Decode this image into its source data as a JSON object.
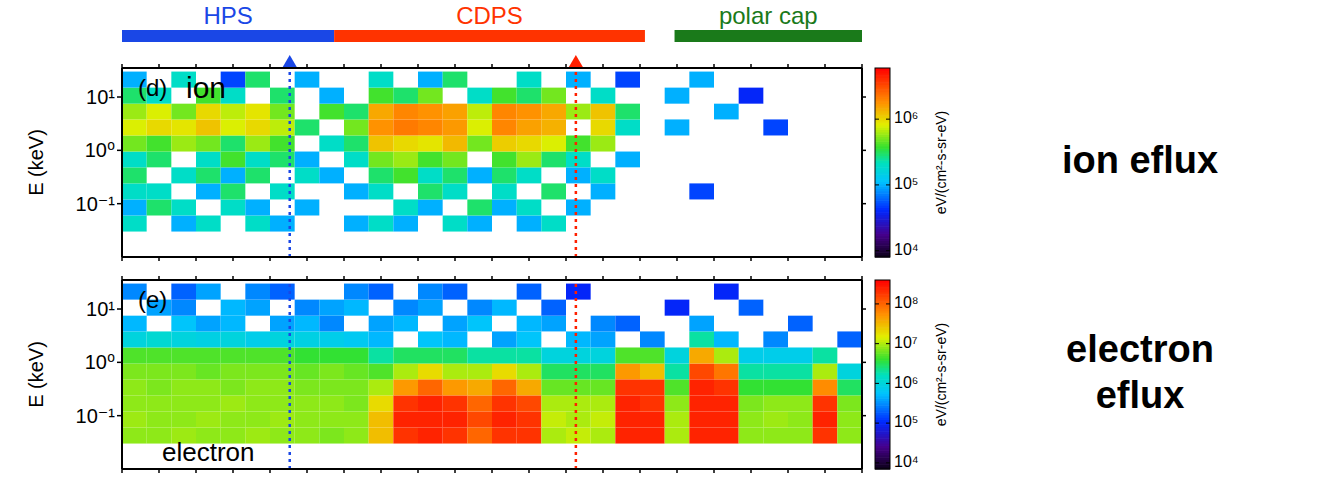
{
  "regions": [
    {
      "name": "HPS",
      "color": "#1a47e6",
      "start": 0,
      "end": 8.6
    },
    {
      "name": "CDPS",
      "color": "#ff3300",
      "start": 8.6,
      "end": 21.2
    },
    {
      "name": "polar cap",
      "color": "#1a7a1a",
      "start": 22.4,
      "end": 30
    }
  ],
  "markers": [
    {
      "x": 6.8,
      "color": "#1a47e6"
    },
    {
      "x": 18.4,
      "color": "#ff2000"
    }
  ],
  "chart_data": [
    {
      "type": "heatmap",
      "title": "ion eflux",
      "panel_label": "(d)",
      "species_label": "ion",
      "ylabel": "E (keV)",
      "log": "y",
      "tick_labels": "y",
      "xlim": [
        0,
        30
      ],
      "xticks": [
        0,
        1.5,
        3,
        4.5,
        6,
        7.5,
        9,
        10.5,
        12,
        13.5,
        15,
        16.5,
        18,
        19.5,
        21,
        22.5,
        24,
        25.5,
        27,
        28.5,
        30
      ],
      "ylim": [
        0.01,
        35
      ],
      "yticks": [
        {
          "value": 0.1,
          "label": "10⁻¹"
        },
        {
          "value": 1,
          "label": "10⁰"
        },
        {
          "value": 10,
          "label": "10¹"
        }
      ],
      "x_bins": [
        0,
        1,
        2,
        3,
        4,
        5,
        6,
        7,
        8,
        9,
        10,
        11,
        12,
        13,
        14,
        15,
        16,
        17,
        18,
        19,
        20,
        21,
        22,
        23,
        24,
        25,
        26,
        27,
        28,
        29,
        30
      ],
      "y_bins": [
        0.03,
        0.06,
        0.12,
        0.24,
        0.48,
        0.95,
        1.9,
        3.8,
        7.5,
        15,
        30
      ],
      "z": [
        [
          200000.0,
          null,
          100000.0,
          200000.0,
          null,
          200000.0,
          100000.0,
          null,
          null,
          100000.0,
          200000.0,
          100000.0,
          null,
          200000.0,
          100000.0,
          null,
          100000.0,
          200000.0,
          null,
          null,
          null,
          null,
          null,
          null,
          null,
          null,
          null,
          null,
          null,
          null
        ],
        [
          100000.0,
          300000.0,
          200000.0,
          null,
          200000.0,
          100000.0,
          null,
          100000.0,
          null,
          null,
          null,
          200000.0,
          100000.0,
          null,
          300000.0,
          100000.0,
          200000.0,
          null,
          100000.0,
          null,
          null,
          null,
          null,
          null,
          null,
          null,
          null,
          null,
          null,
          null
        ],
        [
          200000.0,
          200000.0,
          null,
          100000.0,
          300000.0,
          null,
          200000.0,
          null,
          null,
          100000.0,
          200000.0,
          null,
          300000.0,
          200000.0,
          null,
          200000.0,
          null,
          300000.0,
          null,
          100000.0,
          null,
          null,
          null,
          50000.0,
          null,
          null,
          null,
          null,
          null,
          null
        ],
        [
          300000.0,
          null,
          200000.0,
          300000.0,
          100000.0,
          300000.0,
          null,
          200000.0,
          100000.0,
          null,
          300000.0,
          400000.0,
          200000.0,
          300000.0,
          100000.0,
          300000.0,
          200000.0,
          null,
          100000.0,
          200000.0,
          null,
          null,
          null,
          null,
          null,
          null,
          null,
          null,
          null,
          null
        ],
        [
          200000.0,
          300000.0,
          null,
          200000.0,
          400000.0,
          200000.0,
          300000.0,
          100000.0,
          null,
          200000.0,
          500000.0,
          600000.0,
          400000.0,
          500000.0,
          null,
          400000.0,
          600000.0,
          300000.0,
          200000.0,
          null,
          100000.0,
          null,
          null,
          null,
          null,
          null,
          null,
          null,
          null,
          null
        ],
        [
          500000.0,
          400000.0,
          600000.0,
          500000.0,
          300000.0,
          600000.0,
          400000.0,
          null,
          200000.0,
          300000.0,
          1200000.0,
          1000000.0,
          900000.0,
          1300000.0,
          500000.0,
          1100000.0,
          1000000.0,
          800000.0,
          400000.0,
          600000.0,
          null,
          null,
          null,
          null,
          null,
          null,
          null,
          null,
          null,
          null
        ],
        [
          800000.0,
          1000000.0,
          900000.0,
          1200000.0,
          800000.0,
          1000000.0,
          700000.0,
          300000.0,
          null,
          500000.0,
          1800000.0,
          2200000.0,
          2000000.0,
          1700000.0,
          800000.0,
          2000000.0,
          1600000.0,
          1400000.0,
          null,
          1000000.0,
          200000.0,
          null,
          100000.0,
          null,
          null,
          null,
          50000.0,
          null,
          null,
          null
        ],
        [
          600000.0,
          800000.0,
          500000.0,
          1000000.0,
          700000.0,
          900000.0,
          500000.0,
          null,
          400000.0,
          300000.0,
          1500000.0,
          2000000.0,
          1800000.0,
          1600000.0,
          700000.0,
          2000000.0,
          1800000.0,
          1500000.0,
          600000.0,
          1200000.0,
          300000.0,
          null,
          null,
          null,
          100000.0,
          null,
          null,
          null,
          null,
          null
        ],
        [
          300000.0,
          200000.0,
          null,
          400000.0,
          200000.0,
          null,
          300000.0,
          null,
          100000.0,
          null,
          400000.0,
          300000.0,
          500000.0,
          null,
          200000.0,
          400000.0,
          300000.0,
          500000.0,
          null,
          200000.0,
          null,
          null,
          100000.0,
          null,
          null,
          40000.0,
          null,
          null,
          null,
          null
        ],
        [
          100000.0,
          null,
          200000.0,
          null,
          50000.0,
          300000.0,
          null,
          100000.0,
          null,
          null,
          200000.0,
          null,
          100000.0,
          300000.0,
          null,
          null,
          200000.0,
          null,
          100000.0,
          null,
          50000.0,
          null,
          null,
          100000.0,
          null,
          null,
          null,
          null,
          null,
          null
        ]
      ],
      "colorbar": {
        "label": "eV/(cm²-s-sr-eV)",
        "range": [
          8000,
          6000000
        ],
        "ticks": [
          {
            "value": 10000,
            "label": "10⁴"
          },
          {
            "value": 100000,
            "label": "10⁵"
          },
          {
            "value": 1000000,
            "label": "10⁶"
          }
        ]
      }
    },
    {
      "type": "heatmap",
      "title": "electron eflux",
      "panel_label": "(e)",
      "species_label": "electron",
      "ylabel": "E (keV)",
      "log": "y",
      "tick_labels": "y",
      "xlim": [
        0,
        30
      ],
      "xticks": [
        0,
        1.5,
        3,
        4.5,
        6,
        7.5,
        9,
        10.5,
        12,
        13.5,
        15,
        16.5,
        18,
        19.5,
        21,
        22.5,
        24,
        25.5,
        27,
        28.5,
        30
      ],
      "ylim": [
        0.01,
        35
      ],
      "yticks": [
        {
          "value": 0.1,
          "label": "10⁻¹"
        },
        {
          "value": 1,
          "label": "10⁰"
        },
        {
          "value": 10,
          "label": "10¹"
        }
      ],
      "x_bins": [
        0,
        1,
        2,
        3,
        4,
        5,
        6,
        7,
        8,
        9,
        10,
        11,
        12,
        13,
        14,
        15,
        16,
        17,
        18,
        19,
        20,
        21,
        22,
        23,
        24,
        25,
        26,
        27,
        28,
        29,
        30
      ],
      "y_bins": [
        0.03,
        0.06,
        0.12,
        0.24,
        0.48,
        0.95,
        1.9,
        3.8,
        7.5,
        15,
        30
      ],
      "z": [
        [
          8000000.0,
          8000000.0,
          9000000.0,
          8000000.0,
          8000000.0,
          9000000.0,
          8000000.0,
          8000000.0,
          7000000.0,
          8000000.0,
          30000000.0,
          200000000.0,
          250000000.0,
          200000000.0,
          100000000.0,
          200000000.0,
          200000000.0,
          10000000.0,
          12000000.0,
          10000000.0,
          250000000.0,
          250000000.0,
          10000000.0,
          250000000.0,
          250000000.0,
          8000000.0,
          8000000.0,
          8000000.0,
          200000000.0,
          8000000.0
        ],
        [
          9000000.0,
          8000000.0,
          8000000.0,
          9000000.0,
          8000000.0,
          8000000.0,
          9000000.0,
          8000000.0,
          8000000.0,
          8000000.0,
          30000000.0,
          250000000.0,
          250000000.0,
          250000000.0,
          150000000.0,
          250000000.0,
          200000000.0,
          12000000.0,
          10000000.0,
          12000000.0,
          250000000.0,
          250000000.0,
          10000000.0,
          250000000.0,
          250000000.0,
          8000000.0,
          9000000.0,
          8000000.0,
          250000000.0,
          8000000.0
        ],
        [
          8000000.0,
          8000000.0,
          8000000.0,
          8000000.0,
          9000000.0,
          8000000.0,
          8000000.0,
          8000000.0,
          8000000.0,
          7000000.0,
          20000000.0,
          200000000.0,
          250000000.0,
          200000000.0,
          100000000.0,
          200000000.0,
          150000000.0,
          10000000.0,
          10000000.0,
          10000000.0,
          250000000.0,
          200000000.0,
          8000000.0,
          250000000.0,
          250000000.0,
          7000000.0,
          8000000.0,
          8000000.0,
          200000000.0,
          7000000.0
        ],
        [
          8000000.0,
          7000000.0,
          8000000.0,
          8000000.0,
          7000000.0,
          8000000.0,
          8000000.0,
          7000000.0,
          7000000.0,
          7000000.0,
          10000000.0,
          50000000.0,
          100000000.0,
          50000000.0,
          40000000.0,
          100000000.0,
          40000000.0,
          6000000.0,
          6000000.0,
          6000000.0,
          200000000.0,
          200000000.0,
          5000000.0,
          250000000.0,
          200000000.0,
          4000000.0,
          4000000.0,
          4000000.0,
          60000000.0,
          3000000.0
        ],
        [
          7000000.0,
          7000000.0,
          7000000.0,
          6000000.0,
          7000000.0,
          7000000.0,
          7000000.0,
          6000000.0,
          7000000.0,
          6000000.0,
          5000000.0,
          10000000.0,
          20000000.0,
          10000000.0,
          10000000.0,
          20000000.0,
          10000000.0,
          3000000.0,
          3000000.0,
          3000000.0,
          50000000.0,
          30000000.0,
          2000000.0,
          150000000.0,
          80000000.0,
          2000000.0,
          2000000.0,
          2000000.0,
          10000000.0,
          1000000.0
        ],
        [
          5000000.0,
          5000000.0,
          5000000.0,
          5000000.0,
          5000000.0,
          5000000.0,
          5000000.0,
          4000000.0,
          4000000.0,
          4000000.0,
          2000000.0,
          3000000.0,
          3000000.0,
          3000000.0,
          2000000.0,
          2000000.0,
          2000000.0,
          1000000.0,
          1000000.0,
          1000000.0,
          5000000.0,
          5000000.0,
          1000000.0,
          40000000.0,
          10000000.0,
          800000.0,
          800000.0,
          800000.0,
          2000000.0,
          null
        ],
        [
          1000000.0,
          1200000.0,
          1000000.0,
          900000.0,
          1000000.0,
          800000.0,
          1000000.0,
          900000.0,
          800000.0,
          700000.0,
          500000.0,
          null,
          600000.0,
          500000.0,
          null,
          400000.0,
          600000.0,
          null,
          500000.0,
          400000.0,
          null,
          300000.0,
          null,
          2000000.0,
          500000.0,
          null,
          300000.0,
          null,
          null,
          200000.0
        ],
        [
          500000.0,
          null,
          600000.0,
          400000.0,
          500000.0,
          null,
          400000.0,
          500000.0,
          300000.0,
          null,
          400000.0,
          500000.0,
          null,
          400000.0,
          600000.0,
          null,
          500000.0,
          400000.0,
          null,
          300000.0,
          200000.0,
          null,
          null,
          400000.0,
          null,
          null,
          null,
          200000.0,
          null,
          null
        ],
        [
          null,
          400000.0,
          300000.0,
          null,
          500000.0,
          400000.0,
          null,
          300000.0,
          400000.0,
          500000.0,
          null,
          300000.0,
          400000.0,
          null,
          300000.0,
          500000.0,
          null,
          200000.0,
          null,
          null,
          null,
          null,
          100000.0,
          null,
          null,
          200000.0,
          null,
          null,
          null,
          null
        ],
        [
          300000.0,
          null,
          200000.0,
          400000.0,
          null,
          300000.0,
          200000.0,
          null,
          null,
          300000.0,
          200000.0,
          null,
          300000.0,
          200000.0,
          null,
          null,
          200000.0,
          null,
          100000.0,
          null,
          null,
          null,
          null,
          null,
          100000.0,
          null,
          null,
          null,
          null,
          null
        ]
      ],
      "colorbar": {
        "label": "eV/(cm²-s-sr-eV)",
        "range": [
          7000,
          400000000
        ],
        "ticks": [
          {
            "value": 10000,
            "label": "10⁴"
          },
          {
            "value": 100000,
            "label": "10⁵"
          },
          {
            "value": 1000000,
            "label": "10⁶"
          },
          {
            "value": 10000000,
            "label": "10⁷"
          },
          {
            "value": 100000000,
            "label": "10⁸"
          }
        ]
      }
    }
  ]
}
